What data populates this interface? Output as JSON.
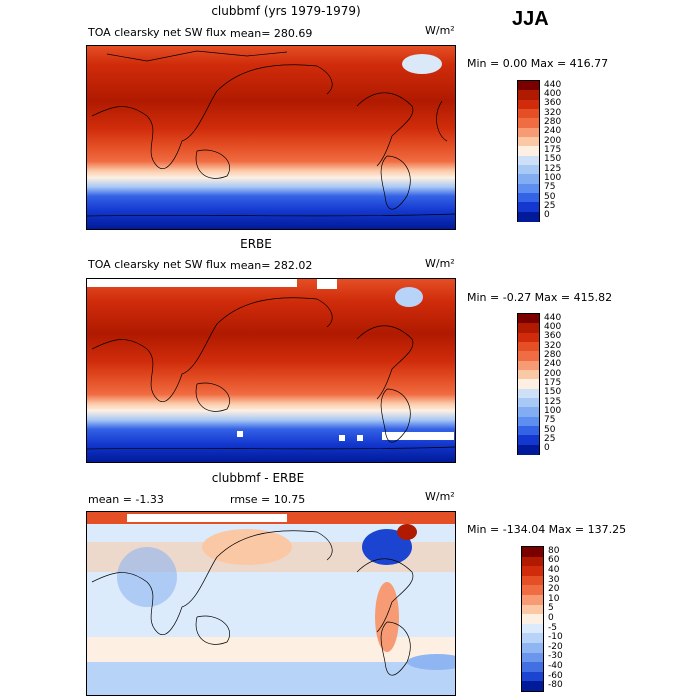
{
  "season": "JJA",
  "panels": [
    {
      "title": "clubbmf (yrs 1979-1979)",
      "subtitle_left": "TOA clearsky net SW flux",
      "mean_label": "mean= 280.69",
      "units": "W/m²",
      "minmax": "Min =    0.00 Max =  416.77",
      "colorbar": {
        "ticks": [
          "440",
          "400",
          "360",
          "320",
          "280",
          "240",
          "200",
          "175",
          "150",
          "125",
          "100",
          "75",
          "50",
          "25",
          "0"
        ],
        "colors": [
          "#7a0000",
          "#b01a00",
          "#d02c0b",
          "#e44f25",
          "#f06c42",
          "#f69b73",
          "#fbc8a6",
          "#fdf0e3",
          "#cde0f8",
          "#a8c8f5",
          "#82adf2",
          "#5e8ef0",
          "#3463e6",
          "#1438cf",
          "#001a99"
        ]
      }
    },
    {
      "title": "ERBE",
      "subtitle_left": "TOA clearsky net SW flux",
      "mean_label": "mean= 282.02",
      "units": "W/m²",
      "minmax": "Min =  -0.27 Max =  415.82",
      "colorbar": {
        "ticks": [
          "440",
          "400",
          "360",
          "320",
          "280",
          "240",
          "200",
          "175",
          "150",
          "125",
          "100",
          "75",
          "50",
          "25",
          "0"
        ],
        "colors": [
          "#7a0000",
          "#b01a00",
          "#d02c0b",
          "#e44f25",
          "#f06c42",
          "#f69b73",
          "#fbc8a6",
          "#fdf0e3",
          "#cde0f8",
          "#a8c8f5",
          "#82adf2",
          "#5e8ef0",
          "#3463e6",
          "#1438cf",
          "#001a99"
        ]
      }
    },
    {
      "title": "clubbmf - ERBE",
      "subtitle_left": "mean =   -1.33",
      "subtitle_mid": "rmse =   10.75",
      "units": "W/m²",
      "minmax": "Min = -134.04 Max = 137.25",
      "colorbar": {
        "ticks": [
          "80",
          "60",
          "40",
          "30",
          "20",
          "10",
          "5",
          "0",
          "-5",
          "-10",
          "-20",
          "-30",
          "-40",
          "-60",
          "-80"
        ],
        "colors": [
          "#7a0000",
          "#b01a00",
          "#d02c0b",
          "#e44f25",
          "#f06c42",
          "#f69b73",
          "#fbc8a6",
          "#fdf0e3",
          "#dcebfb",
          "#b7d3f7",
          "#8fb6f2",
          "#6a96ee",
          "#4270e3",
          "#1b45d0",
          "#001a99"
        ]
      }
    }
  ],
  "chart_data": [
    {
      "type": "heatmap",
      "title": "clubbmf (yrs 1979-1979)",
      "variable": "TOA clearsky net SW flux",
      "mean": 280.69,
      "min": 0.0,
      "max": 416.77,
      "units": "W/m²"
    },
    {
      "type": "heatmap",
      "title": "ERBE",
      "variable": "TOA clearsky net SW flux",
      "mean": 282.02,
      "min": -0.27,
      "max": 415.82,
      "units": "W/m²"
    },
    {
      "type": "heatmap",
      "title": "clubbmf - ERBE",
      "mean": -1.33,
      "rmse": 10.75,
      "min": -134.04,
      "max": 137.25,
      "units": "W/m²"
    }
  ]
}
